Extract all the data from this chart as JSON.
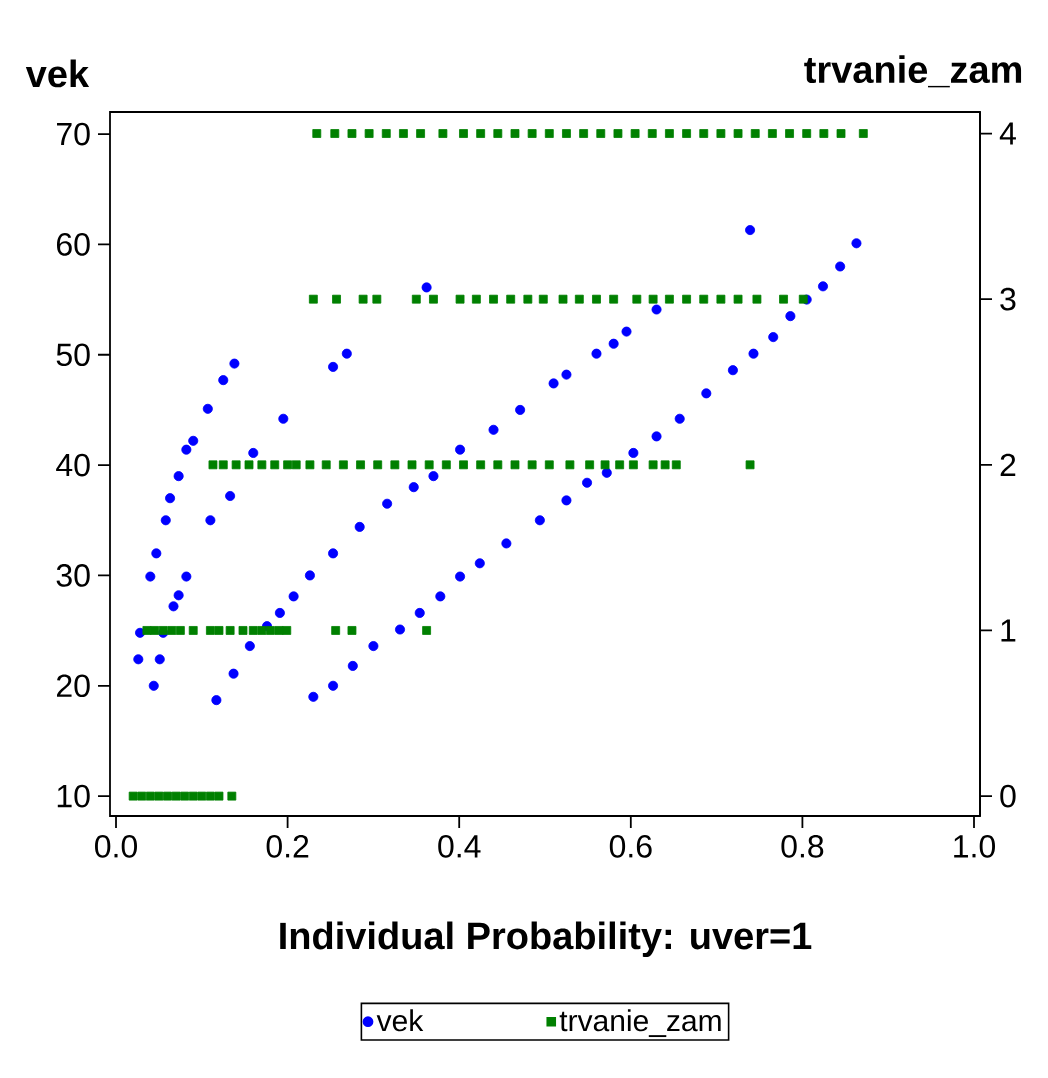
{
  "chart_data": {
    "type": "scatter",
    "xlabel": "Individual Probability: uver=1",
    "ylabel": "vek",
    "y2label": "trvanie_zam",
    "xlim": [
      -0.007,
      1.007
    ],
    "ylim": [
      8.2,
      72
    ],
    "y2lim": [
      -0.12,
      4.13
    ],
    "xticks": [
      {
        "value": 0,
        "label": "0.0"
      },
      {
        "value": 0.2,
        "label": "0.2"
      },
      {
        "value": 0.4,
        "label": "0.4"
      },
      {
        "value": 0.6,
        "label": "0.6"
      },
      {
        "value": 0.8,
        "label": "0.8"
      },
      {
        "value": 1,
        "label": "1.0"
      }
    ],
    "yticks": [
      10,
      20,
      30,
      40,
      50,
      60,
      70
    ],
    "y2ticks": [
      0,
      1,
      2,
      3,
      4
    ],
    "grid": false,
    "legend": "bottom",
    "series": [
      {
        "name": "vek",
        "color": "#0000ff",
        "marker": "circle",
        "x": [
          0.026,
          0.028,
          0.04,
          0.044,
          0.047,
          0.051,
          0.055,
          0.058,
          0.063,
          0.067,
          0.073,
          0.073,
          0.082,
          0.082,
          0.09,
          0.107,
          0.11,
          0.117,
          0.125,
          0.133,
          0.137,
          0.138,
          0.156,
          0.16,
          0.176,
          0.191,
          0.195,
          0.207,
          0.226,
          0.23,
          0.253,
          0.253,
          0.253,
          0.269,
          0.276,
          0.284,
          0.3,
          0.316,
          0.331,
          0.347,
          0.354,
          0.362,
          0.37,
          0.378,
          0.401,
          0.401,
          0.424,
          0.44,
          0.455,
          0.471,
          0.494,
          0.51,
          0.525,
          0.525,
          0.549,
          0.56,
          0.572,
          0.58,
          0.595,
          0.603,
          0.63,
          0.63,
          0.657,
          0.688,
          0.719,
          0.739,
          0.743,
          0.766,
          0.786,
          0.805,
          0.824,
          0.844,
          0.863
        ],
        "values": [
          22.4,
          24.8,
          29.9,
          20,
          32,
          22.4,
          24.8,
          35,
          37,
          27.2,
          28.2,
          39,
          29.9,
          41.4,
          42.2,
          45.1,
          35,
          18.7,
          47.7,
          37.2,
          21.1,
          49.2,
          23.6,
          41.1,
          25.4,
          26.6,
          44.2,
          28.1,
          30,
          19,
          20,
          32,
          48.9,
          50.1,
          21.8,
          34.4,
          23.6,
          36.5,
          25.1,
          38,
          26.6,
          56.1,
          39,
          28.1,
          41.4,
          29.9,
          31.1,
          43.2,
          32.9,
          45,
          35,
          47.4,
          36.8,
          48.2,
          38.4,
          50.1,
          39.3,
          51,
          52.1,
          41.1,
          42.6,
          54.1,
          44.2,
          46.5,
          48.6,
          61.3,
          50.1,
          51.6,
          53.5,
          55,
          56.2,
          58,
          60.1
        ]
      },
      {
        "name": "trvanie_zam",
        "color": "#008000",
        "marker": "square",
        "axis": "y2",
        "x": [
          0.02,
          0.03,
          0.04,
          0.05,
          0.06,
          0.07,
          0.08,
          0.09,
          0.1,
          0.11,
          0.12,
          0.135,
          0.036,
          0.045,
          0.055,
          0.065,
          0.075,
          0.09,
          0.11,
          0.12,
          0.133,
          0.148,
          0.16,
          0.17,
          0.18,
          0.19,
          0.199,
          0.256,
          0.275,
          0.362,
          0.113,
          0.125,
          0.14,
          0.155,
          0.17,
          0.185,
          0.2,
          0.21,
          0.226,
          0.245,
          0.265,
          0.285,
          0.305,
          0.325,
          0.345,
          0.365,
          0.385,
          0.405,
          0.425,
          0.445,
          0.465,
          0.485,
          0.505,
          0.529,
          0.552,
          0.57,
          0.587,
          0.603,
          0.626,
          0.64,
          0.653,
          0.739,
          0.23,
          0.257,
          0.288,
          0.304,
          0.35,
          0.37,
          0.401,
          0.42,
          0.44,
          0.46,
          0.48,
          0.498,
          0.521,
          0.54,
          0.56,
          0.58,
          0.607,
          0.626,
          0.645,
          0.665,
          0.685,
          0.705,
          0.725,
          0.747,
          0.778,
          0.801,
          0.234,
          0.255,
          0.275,
          0.295,
          0.315,
          0.335,
          0.355,
          0.381,
          0.405,
          0.425,
          0.445,
          0.465,
          0.485,
          0.505,
          0.525,
          0.545,
          0.565,
          0.585,
          0.605,
          0.625,
          0.645,
          0.665,
          0.685,
          0.705,
          0.725,
          0.745,
          0.765,
          0.785,
          0.805,
          0.825,
          0.845,
          0.871
        ],
        "values": [
          0,
          0,
          0,
          0,
          0,
          0,
          0,
          0,
          0,
          0,
          0,
          0,
          1,
          1,
          1,
          1,
          1,
          1,
          1,
          1,
          1,
          1,
          1,
          1,
          1,
          1,
          1,
          1,
          1,
          1,
          2,
          2,
          2,
          2,
          2,
          2,
          2,
          2,
          2,
          2,
          2,
          2,
          2,
          2,
          2,
          2,
          2,
          2,
          2,
          2,
          2,
          2,
          2,
          2,
          2,
          2,
          2,
          2,
          2,
          2,
          2,
          2,
          3,
          3,
          3,
          3,
          3,
          3,
          3,
          3,
          3,
          3,
          3,
          3,
          3,
          3,
          3,
          3,
          3,
          3,
          3,
          3,
          3,
          3,
          3,
          3,
          3,
          3,
          4,
          4,
          4,
          4,
          4,
          4,
          4,
          4,
          4,
          4,
          4,
          4,
          4,
          4,
          4,
          4,
          4,
          4,
          4,
          4,
          4,
          4,
          4,
          4,
          4,
          4,
          4,
          4,
          4,
          4,
          4,
          4
        ]
      }
    ]
  }
}
